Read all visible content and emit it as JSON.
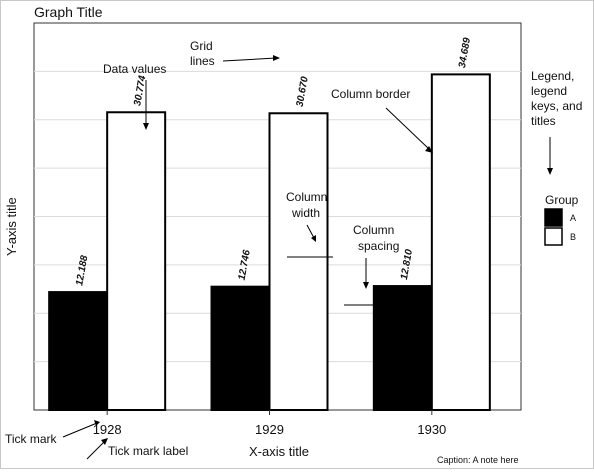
{
  "chart_data": {
    "type": "bar",
    "title": "Graph Title",
    "xlabel": "X-axis title",
    "ylabel": "Y-axis title",
    "caption": "Caption: A note here",
    "categories": [
      "1928",
      "1929",
      "1930"
    ],
    "series": [
      {
        "name": "A",
        "values": [
          12.188,
          12.746,
          12.81
        ],
        "value_labels": [
          "12.188",
          "12.746",
          "12.810"
        ],
        "color": "#000000"
      },
      {
        "name": "B",
        "values": [
          30.774,
          30.67,
          34.689
        ],
        "value_labels": [
          "30.774",
          "30.670",
          "34.689"
        ],
        "color": "#ffffff"
      }
    ],
    "ylim": [
      0,
      40
    ],
    "grid": true,
    "legend": {
      "title": "Group",
      "position": "right"
    }
  },
  "annotations": {
    "data_values": "Data values",
    "grid_lines": [
      "Grid",
      "lines"
    ],
    "column_border": "Column border",
    "legend": [
      "Legend,",
      "legend",
      "keys, and",
      "titles"
    ],
    "column_width": [
      "Column",
      "width"
    ],
    "column_spacing": [
      "Column",
      "spacing"
    ],
    "tick_mark": "Tick mark",
    "tick_mark_label": "Tick mark label"
  }
}
